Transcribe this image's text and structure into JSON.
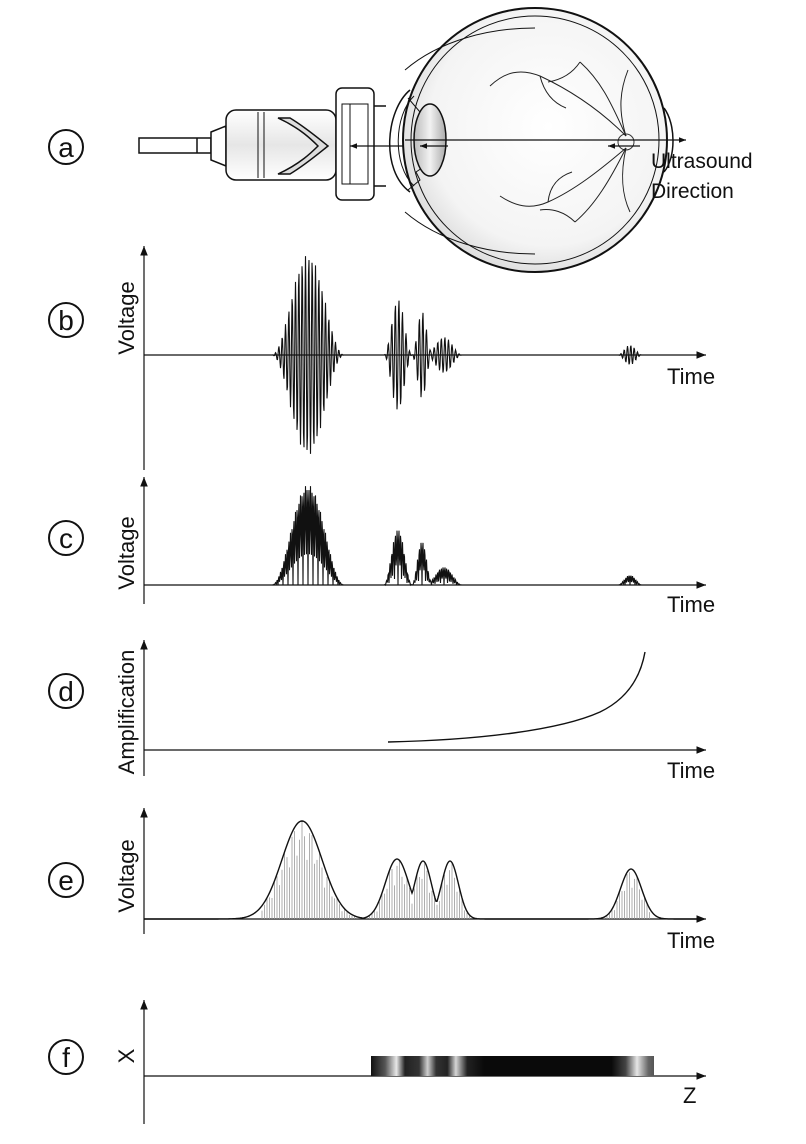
{
  "panels": {
    "a": {
      "marker": "a",
      "label_line1": "Ultrasound",
      "label_line2": "Direction"
    },
    "b": {
      "marker": "b",
      "ylabel": "Voltage",
      "xlabel": "Time"
    },
    "c": {
      "marker": "c",
      "ylabel": "Voltage",
      "xlabel": "Time"
    },
    "d": {
      "marker": "d",
      "ylabel": "Amplification",
      "xlabel": "Time"
    },
    "e": {
      "marker": "e",
      "ylabel": "Voltage",
      "xlabel": "Time"
    },
    "f": {
      "marker": "f",
      "ylabel": "X",
      "xlabel": "Z"
    }
  },
  "colors": {
    "ink": "#111111",
    "gray_line": "#888888",
    "white": "#ffffff"
  },
  "icons": [
    "ultrasound-probe-icon",
    "eyeball-icon"
  ]
}
